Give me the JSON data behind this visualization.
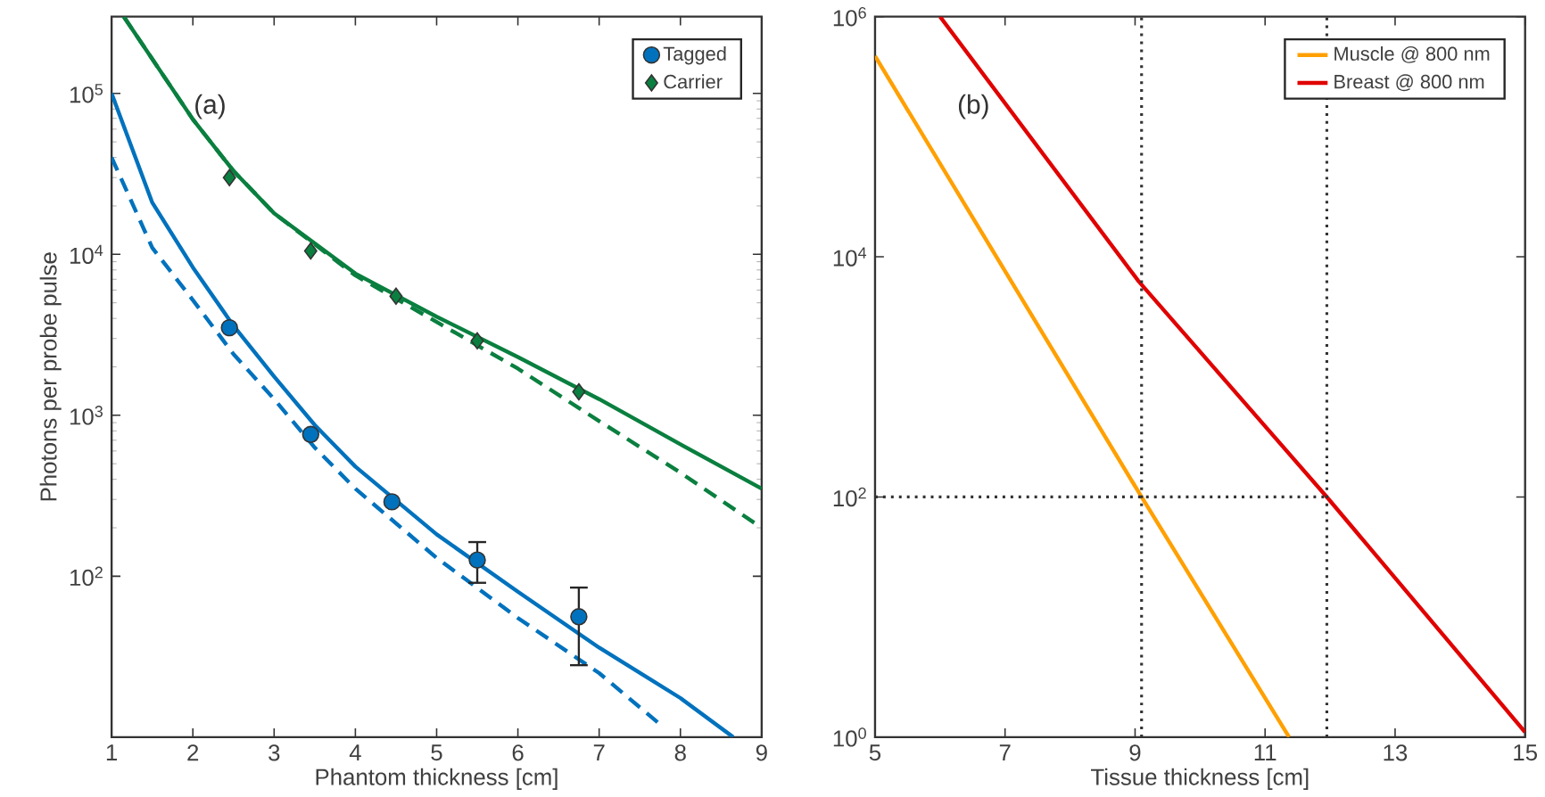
{
  "chart_data": [
    {
      "type": "line",
      "xlabel": "Phantom thickness [cm]",
      "ylabel": "Photons per probe pulse",
      "log": "y",
      "xlim": [
        1,
        9
      ],
      "ylim": [
        10,
        300000
      ],
      "xticks": [
        1,
        2,
        3,
        4,
        5,
        6,
        7,
        8,
        9
      ],
      "yticks": [
        {
          "value": 100,
          "label": "10$^{2}$"
        },
        {
          "value": 1000,
          "label": "10$^{3}$"
        },
        {
          "value": 10000,
          "label": "10$^{4}$"
        },
        {
          "value": 100000,
          "label": "10$^{5}$"
        }
      ],
      "legend": "top right",
      "annotations": [
        "(a)"
      ],
      "series": [
        {
          "type": "line",
          "line_style": "solid",
          "color": "#0a7f3f",
          "x": [
            1.15,
            2,
            2.5,
            3,
            4,
            5,
            6,
            7,
            8,
            9
          ],
          "values": [
            300000,
            69000,
            33000,
            18000,
            7600,
            4100,
            2300,
            1260,
            660,
            350
          ]
        },
        {
          "type": "line",
          "line_style": "dashed",
          "color": "#0a7f3f",
          "x": [
            1.15,
            2,
            2.5,
            3,
            4,
            5,
            6,
            7,
            8,
            9
          ],
          "values": [
            300000,
            69000,
            33000,
            18000,
            7400,
            3800,
            1950,
            920,
            440,
            200
          ]
        },
        {
          "type": "line",
          "line_style": "solid",
          "color": "#0072bd",
          "x": [
            1,
            1.5,
            2,
            2.5,
            3,
            3.5,
            4,
            5,
            6,
            7,
            8,
            8.65
          ],
          "values": [
            100000,
            21000,
            8300,
            3600,
            1740,
            870,
            480,
            182,
            80,
            36,
            17.5,
            10
          ]
        },
        {
          "type": "line",
          "line_style": "dashed",
          "color": "#0072bd",
          "x": [
            1,
            1.5,
            2,
            2.5,
            3,
            3.5,
            4,
            5,
            6,
            7,
            7.75
          ],
          "values": [
            40000,
            11000,
            5200,
            2400,
            1260,
            630,
            350,
            130,
            55,
            25,
            12
          ]
        },
        {
          "name": "Tagged",
          "type": "scatter",
          "marker": "circle",
          "color": "#0072bd",
          "x": [
            2.45,
            3.45,
            4.45,
            5.5,
            6.75
          ],
          "values": [
            3500,
            760,
            290,
            126,
            56
          ],
          "errors": [
            null,
            null,
            null,
            [
              91,
              163
            ],
            [
              28,
              85
            ]
          ]
        },
        {
          "name": "Carrier",
          "type": "scatter",
          "marker": "diamond",
          "color": "#0a7f3f",
          "x": [
            2.45,
            3.45,
            4.5,
            5.5,
            6.75
          ],
          "values": [
            30000,
            10500,
            5500,
            2900,
            1400
          ]
        }
      ]
    },
    {
      "type": "line",
      "xlabel": "Tissue thickness [cm]",
      "log": "y",
      "xlim": [
        5,
        15
      ],
      "ylim": [
        1,
        1000000
      ],
      "xticks": [
        5,
        7,
        9,
        11,
        13,
        15
      ],
      "yticks": [
        {
          "value": 1,
          "label": "10$^{0}$"
        },
        {
          "value": 100,
          "label": "10$^{2}$"
        },
        {
          "value": 10000,
          "label": "10$^{4}$"
        },
        {
          "value": 1000000,
          "label": "10$^{6}$"
        }
      ],
      "legend": "top right",
      "annotations": [
        "(b)"
      ],
      "ref_lines": [
        {
          "axis": "x",
          "value": 9.1,
          "line_style": "dotted",
          "color": "#333333"
        },
        {
          "axis": "x",
          "value": 11.95,
          "line_style": "dotted",
          "color": "#333333"
        },
        {
          "axis": "y",
          "value": 100,
          "line_style": "dotted",
          "color": "#333333"
        }
      ],
      "series": [
        {
          "name": "Muscle @ 800 nm",
          "line_style": "solid",
          "color": "#ffa000",
          "x": [
            5,
            9.1,
            11.37
          ],
          "values": [
            470000,
            100,
            1
          ]
        },
        {
          "name": "Breast @ 800 nm",
          "line_style": "solid",
          "color": "#e00000",
          "x": [
            6,
            9.05,
            11.95,
            15
          ],
          "values": [
            1000000,
            6300,
            100,
            1.1
          ]
        }
      ]
    }
  ]
}
